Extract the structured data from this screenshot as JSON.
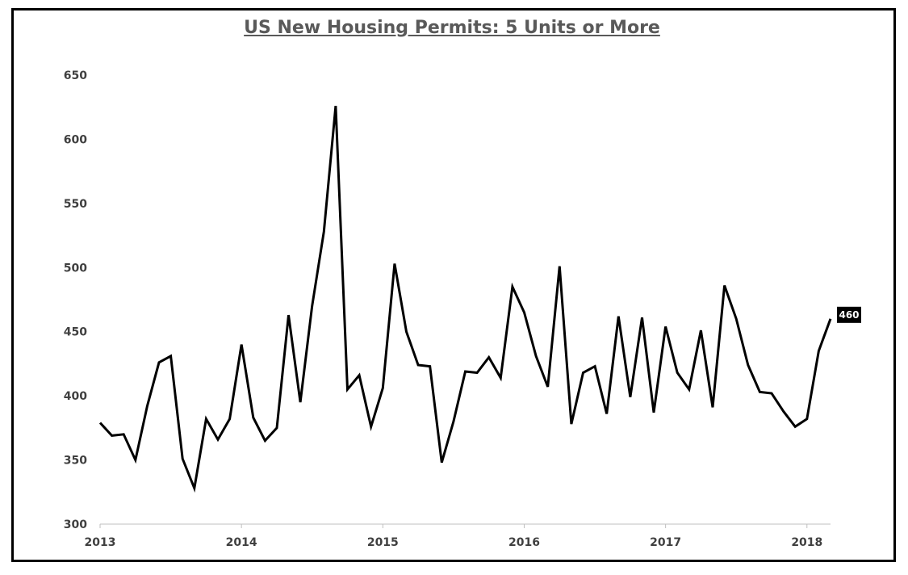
{
  "chart_data": {
    "type": "line",
    "title": "US New Housing Permits: 5 Units or More",
    "xlabel": "",
    "ylabel": "",
    "ylim": [
      300,
      650
    ],
    "yticks": [
      300,
      350,
      400,
      450,
      500,
      550,
      600,
      650
    ],
    "xticks": [
      "2013",
      "2014",
      "2015",
      "2016",
      "2017",
      "2018"
    ],
    "grid": false,
    "legend": "none",
    "line_color": "#000000",
    "end_label": "460",
    "series": [
      {
        "x": [
          "2013-01",
          "2013-02",
          "2013-03",
          "2013-04",
          "2013-05",
          "2013-06",
          "2013-07",
          "2013-08",
          "2013-09",
          "2013-10",
          "2013-11",
          "2013-12",
          "2014-01",
          "2014-02",
          "2014-03",
          "2014-04",
          "2014-05",
          "2014-06",
          "2014-07",
          "2014-08",
          "2014-09",
          "2014-10",
          "2014-11",
          "2014-12",
          "2015-01",
          "2015-02",
          "2015-03",
          "2015-04",
          "2015-05",
          "2015-06",
          "2015-07",
          "2015-08",
          "2015-09",
          "2015-10",
          "2015-11",
          "2015-12",
          "2016-01",
          "2016-02",
          "2016-03",
          "2016-04",
          "2016-05",
          "2016-06",
          "2016-07",
          "2016-08",
          "2016-09",
          "2016-10",
          "2016-11",
          "2016-12",
          "2017-01",
          "2017-02",
          "2017-03",
          "2017-04",
          "2017-05",
          "2017-06",
          "2017-07",
          "2017-08",
          "2017-09",
          "2017-10",
          "2017-11",
          "2017-12",
          "2018-01",
          "2018-02",
          "2018-03"
        ],
        "values": [
          379,
          369,
          370,
          350,
          392,
          426,
          431,
          351,
          328,
          382,
          366,
          382,
          440,
          383,
          365,
          375,
          463,
          395,
          470,
          528,
          626,
          405,
          416,
          376,
          406,
          503,
          450,
          424,
          423,
          348,
          380,
          419,
          418,
          430,
          414,
          485,
          465,
          431,
          407,
          501,
          378,
          418,
          423,
          386,
          462,
          399,
          461,
          387,
          454,
          418,
          405,
          451,
          391,
          486,
          460,
          424,
          403,
          402,
          388,
          376,
          382,
          435,
          460
        ]
      }
    ]
  }
}
